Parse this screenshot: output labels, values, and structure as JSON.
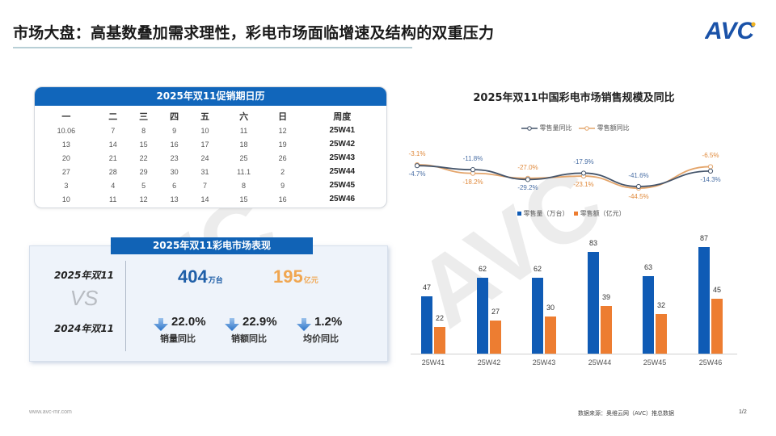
{
  "header": {
    "title": "市场大盘：高基数叠加需求理性，彩电市场面临增速及结构的双重压力",
    "logo_text": "AVC"
  },
  "colors": {
    "brand_blue": "#1166bb",
    "bar_blue": "#0f5bb5",
    "bar_orange": "#ed7d31",
    "line_blue": "#44546a",
    "line_orange": "#e4a56b",
    "label_blue": "#4a6fa5",
    "label_orange": "#e08a3c"
  },
  "calendar": {
    "title": "2025年双11促销期日历",
    "headers": [
      "一",
      "二",
      "三",
      "四",
      "五",
      "六",
      "日",
      "周度"
    ],
    "rows": [
      [
        "10.06",
        "7",
        "8",
        "9",
        "10",
        "11",
        "12",
        "25W41"
      ],
      [
        "13",
        "14",
        "15",
        "16",
        "17",
        "18",
        "19",
        "25W42"
      ],
      [
        "20",
        "21",
        "22",
        "23",
        "24",
        "25",
        "26",
        "25W43"
      ],
      [
        "27",
        "28",
        "29",
        "30",
        "31",
        "11.1",
        "2",
        "25W44"
      ],
      [
        "3",
        "4",
        "5",
        "6",
        "7",
        "8",
        "9",
        "25W45"
      ],
      [
        "10",
        "11",
        "12",
        "13",
        "14",
        "15",
        "16",
        "25W46"
      ]
    ]
  },
  "performance": {
    "title": "2025年双11彩电市场表现",
    "year_current": "2025年双11",
    "vs": "VS",
    "year_previous": "2024年双11",
    "volume": {
      "value": "404",
      "unit": "万台"
    },
    "revenue": {
      "value": "195",
      "unit": "亿元"
    },
    "metrics": [
      {
        "value": "22.0%",
        "label": "销量同比",
        "direction": "down"
      },
      {
        "value": "22.9%",
        "label": "销额同比",
        "direction": "down"
      },
      {
        "value": "1.2%",
        "label": "均价同比",
        "direction": "down"
      }
    ]
  },
  "chart_data": [
    {
      "type": "line",
      "title": "2025年双11中国彩电市场销售规模及同比",
      "categories": [
        "25W41",
        "25W42",
        "25W43",
        "25W44",
        "25W45",
        "25W46"
      ],
      "series": [
        {
          "name": "零售量同比",
          "values": [
            -4.7,
            -11.8,
            -29.2,
            -17.9,
            -41.6,
            -14.3
          ],
          "labels": [
            "-4.7%",
            "-11.8%",
            "-29.2%",
            "-17.9%",
            "-41.6%",
            "-14.3%"
          ]
        },
        {
          "name": "零售额同比",
          "values": [
            -3.1,
            -18.2,
            -27.0,
            -23.1,
            -44.5,
            -6.5
          ],
          "labels": [
            "-3.1%",
            "-18.2%",
            "-27.0%",
            "-23.1%",
            "-44.5%",
            "-6.5%"
          ]
        }
      ],
      "legend_position": "top",
      "grid": false
    },
    {
      "type": "bar",
      "categories": [
        "25W41",
        "25W42",
        "25W43",
        "25W44",
        "25W45",
        "25W46"
      ],
      "series": [
        {
          "name": "零售量（万台）",
          "values": [
            47,
            62,
            62,
            83,
            63,
            87
          ]
        },
        {
          "name": "零售额（亿元）",
          "values": [
            22,
            27,
            30,
            39,
            32,
            45
          ]
        }
      ],
      "legend_position": "top",
      "grid": false
    }
  ],
  "footer": {
    "url": "www.avc-mr.com",
    "source": "数据来源：奥维云网（AVC）推总数据",
    "page": "1/2"
  }
}
